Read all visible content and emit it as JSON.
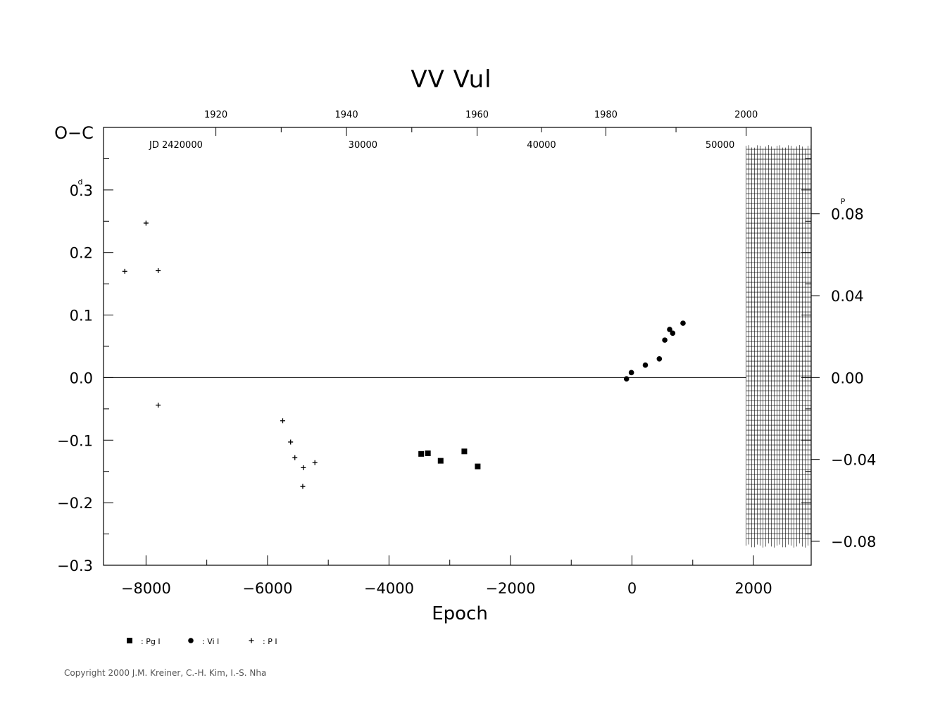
{
  "chart_data": {
    "type": "scatter",
    "title": "VV  Vul",
    "ylabel": "O−C",
    "ylabel_unit": "d",
    "xlabel": "Epoch",
    "xlim": [
      -8700,
      2950
    ],
    "ylim": [
      -0.3,
      0.4
    ],
    "y2lim_phase": [
      -0.0917,
      0.1222
    ],
    "y2_unit": "P",
    "x_ticks": [
      "−8000",
      "−6000",
      "−4000",
      "−2000",
      "0",
      "2000"
    ],
    "x_tick_values": [
      -8000,
      -6000,
      -4000,
      -2000,
      0,
      2000
    ],
    "y_ticks": [
      "−0.3",
      "−0.2",
      "−0.1",
      "0.0",
      "0.1",
      "0.2",
      "0.3"
    ],
    "y_tick_values": [
      -0.3,
      -0.2,
      -0.1,
      0.0,
      0.1,
      0.2,
      0.3
    ],
    "y2_ticks": [
      "−0.08",
      "−0.04",
      "0.00",
      "0.04",
      "0.08"
    ],
    "y2_tick_values": [
      -0.08,
      -0.04,
      0.0,
      0.04,
      0.08
    ],
    "top_year_ticks": [
      "1920",
      "1940",
      "1960",
      "1980",
      "2000"
    ],
    "top_year_epochs": [
      -6850,
      -4700,
      -2550,
      -430,
      1880
    ],
    "jd_prefix": "JD  2420000",
    "jd_ticks": [
      "30000",
      "40000",
      "50000"
    ],
    "jd_epochs": [
      -4430,
      -1490,
      1450
    ],
    "zero_line": true,
    "hatched_region_x": [
      1880,
      2950
    ],
    "hatched_region_y": [
      -0.265,
      0.365
    ],
    "legend": [
      {
        "marker": "square",
        "label": ": Pg  I"
      },
      {
        "marker": "circle",
        "label": ": Vi  I"
      },
      {
        "marker": "plus",
        "label": ": P  I"
      }
    ],
    "series": [
      {
        "marker": "plus",
        "x": [
          -8350,
          -8000,
          -7800,
          -7800,
          -5750,
          -5620,
          -5550,
          -5410,
          -5420,
          -5220
        ],
        "y": [
          0.17,
          0.247,
          0.171,
          -0.044,
          -0.069,
          -0.103,
          -0.128,
          -0.144,
          -0.174,
          -0.136
        ]
      },
      {
        "marker": "square",
        "x": [
          -3470,
          -3360,
          -3150,
          -2760,
          -2540
        ],
        "y": [
          -0.122,
          -0.121,
          -0.133,
          -0.118,
          -0.142
        ]
      },
      {
        "marker": "circle",
        "x": [
          -90,
          -10,
          220,
          450,
          540,
          620,
          670,
          840
        ],
        "y": [
          -0.002,
          0.008,
          0.02,
          0.03,
          0.06,
          0.077,
          0.071,
          0.087
        ]
      }
    ]
  },
  "copyright": "Copyright 2000 J.M. Kreiner, C.-H. Kim, I.-S. Nha"
}
